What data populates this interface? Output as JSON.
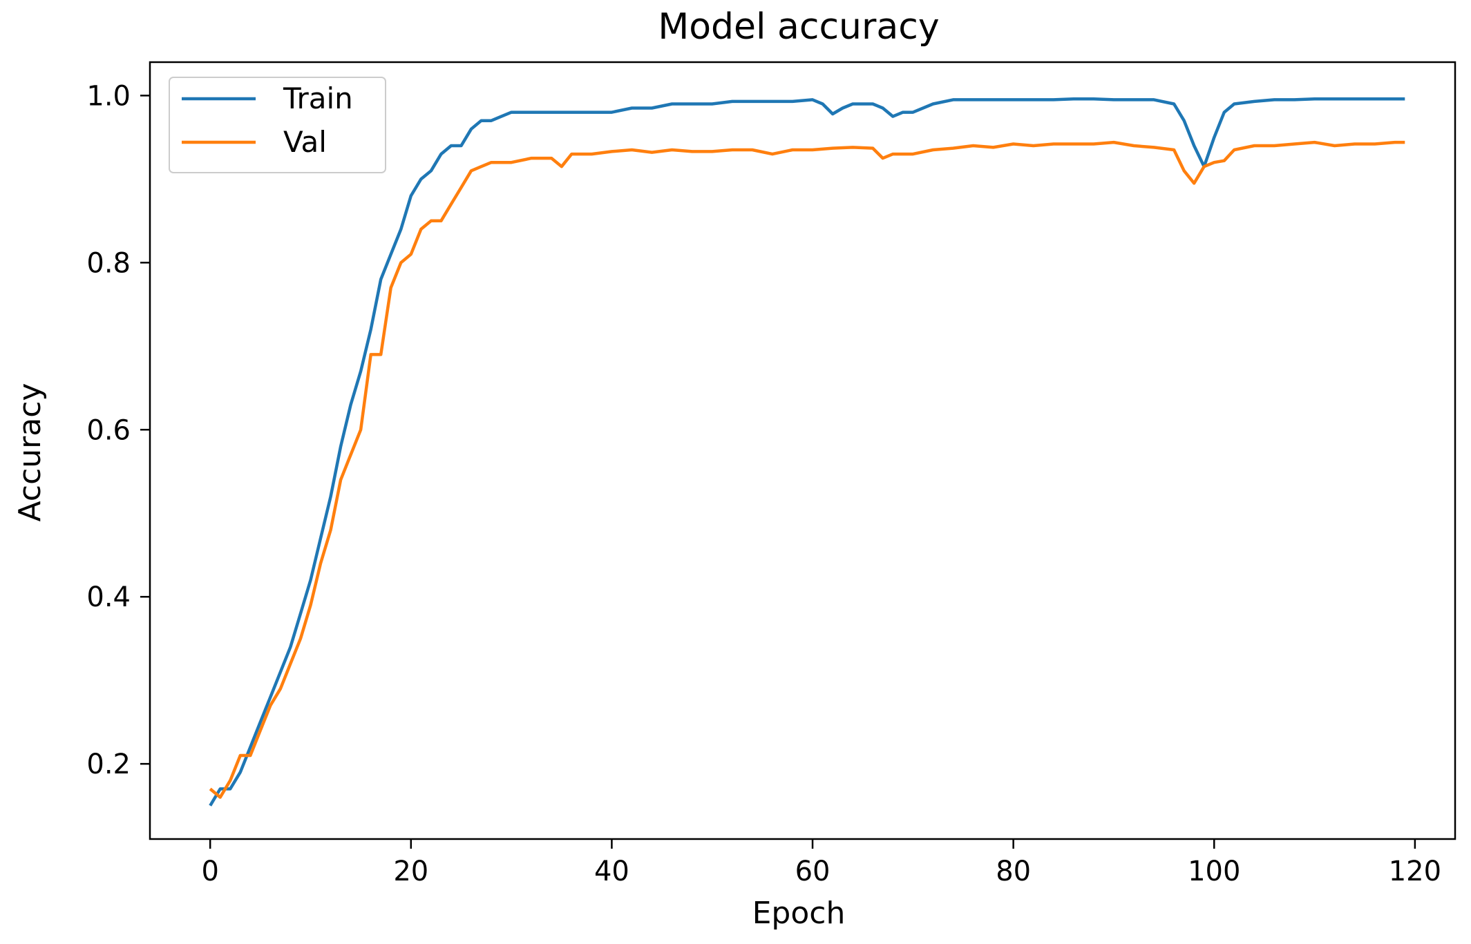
{
  "chart_data": {
    "type": "line",
    "title": "Model accuracy",
    "xlabel": "Epoch",
    "ylabel": "Accuracy",
    "xlim": [
      -6,
      124
    ],
    "ylim": [
      0.11,
      1.04
    ],
    "xticks": [
      0,
      20,
      40,
      60,
      80,
      100,
      120
    ],
    "yticks": [
      0.2,
      0.4,
      0.6,
      0.8,
      1.0
    ],
    "xtick_labels": [
      "0",
      "20",
      "40",
      "60",
      "80",
      "100",
      "120"
    ],
    "ytick_labels": [
      "0.2",
      "0.4",
      "0.6",
      "0.8",
      "1.0"
    ],
    "grid": false,
    "legend_position": "top-left",
    "series": [
      {
        "name": "Train",
        "color": "#1f77b4",
        "x": [
          0,
          1,
          2,
          3,
          4,
          5,
          6,
          7,
          8,
          9,
          10,
          11,
          12,
          13,
          14,
          15,
          16,
          17,
          18,
          19,
          20,
          21,
          22,
          23,
          24,
          25,
          26,
          27,
          28,
          29,
          30,
          32,
          34,
          36,
          38,
          40,
          42,
          44,
          46,
          48,
          50,
          52,
          54,
          56,
          58,
          60,
          61,
          62,
          63,
          64,
          65,
          66,
          67,
          68,
          69,
          70,
          72,
          74,
          76,
          78,
          80,
          82,
          84,
          86,
          88,
          90,
          92,
          94,
          96,
          97,
          98,
          99,
          100,
          101,
          102,
          104,
          106,
          108,
          110,
          112,
          114,
          116,
          118,
          119
        ],
        "y": [
          0.15,
          0.17,
          0.17,
          0.19,
          0.22,
          0.25,
          0.28,
          0.31,
          0.34,
          0.38,
          0.42,
          0.47,
          0.52,
          0.58,
          0.63,
          0.67,
          0.72,
          0.78,
          0.81,
          0.84,
          0.88,
          0.9,
          0.91,
          0.93,
          0.94,
          0.94,
          0.96,
          0.97,
          0.97,
          0.975,
          0.98,
          0.98,
          0.98,
          0.98,
          0.98,
          0.98,
          0.985,
          0.985,
          0.99,
          0.99,
          0.99,
          0.993,
          0.993,
          0.993,
          0.993,
          0.995,
          0.99,
          0.978,
          0.985,
          0.99,
          0.99,
          0.99,
          0.985,
          0.975,
          0.98,
          0.98,
          0.99,
          0.995,
          0.995,
          0.995,
          0.995,
          0.995,
          0.995,
          0.996,
          0.996,
          0.995,
          0.995,
          0.995,
          0.99,
          0.97,
          0.94,
          0.915,
          0.95,
          0.98,
          0.99,
          0.993,
          0.995,
          0.995,
          0.996,
          0.996,
          0.996,
          0.996,
          0.996,
          0.996
        ]
      },
      {
        "name": "Val",
        "color": "#ff7f0e",
        "x": [
          0,
          1,
          2,
          3,
          4,
          5,
          6,
          7,
          8,
          9,
          10,
          11,
          12,
          13,
          14,
          15,
          16,
          17,
          18,
          19,
          20,
          21,
          22,
          23,
          24,
          25,
          26,
          27,
          28,
          29,
          30,
          32,
          34,
          35,
          36,
          38,
          40,
          42,
          44,
          46,
          48,
          50,
          52,
          54,
          56,
          58,
          60,
          62,
          64,
          66,
          67,
          68,
          70,
          72,
          74,
          76,
          78,
          80,
          82,
          84,
          86,
          88,
          90,
          92,
          94,
          96,
          97,
          98,
          99,
          100,
          101,
          102,
          104,
          106,
          108,
          110,
          112,
          114,
          116,
          118,
          119
        ],
        "y": [
          0.17,
          0.16,
          0.18,
          0.21,
          0.21,
          0.24,
          0.27,
          0.29,
          0.32,
          0.35,
          0.39,
          0.44,
          0.48,
          0.54,
          0.57,
          0.6,
          0.69,
          0.69,
          0.77,
          0.8,
          0.81,
          0.84,
          0.85,
          0.85,
          0.87,
          0.89,
          0.91,
          0.915,
          0.92,
          0.92,
          0.92,
          0.925,
          0.925,
          0.915,
          0.93,
          0.93,
          0.933,
          0.935,
          0.932,
          0.935,
          0.933,
          0.933,
          0.935,
          0.935,
          0.93,
          0.935,
          0.935,
          0.937,
          0.938,
          0.937,
          0.925,
          0.93,
          0.93,
          0.935,
          0.937,
          0.94,
          0.938,
          0.942,
          0.94,
          0.942,
          0.942,
          0.942,
          0.944,
          0.94,
          0.938,
          0.935,
          0.91,
          0.895,
          0.915,
          0.92,
          0.922,
          0.935,
          0.94,
          0.94,
          0.942,
          0.944,
          0.94,
          0.942,
          0.942,
          0.944,
          0.944
        ]
      }
    ]
  }
}
